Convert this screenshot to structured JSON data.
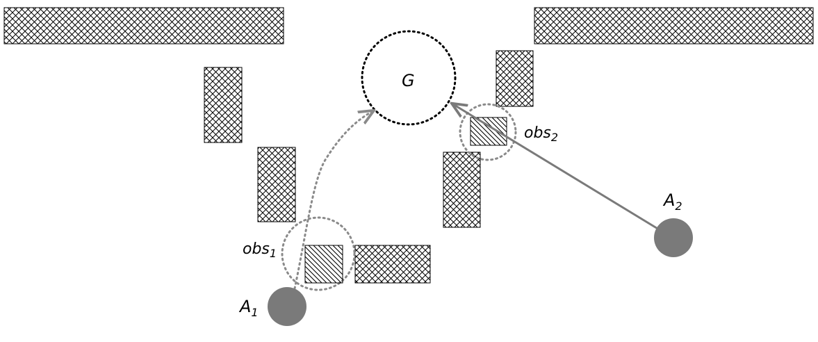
{
  "labels": {
    "goal": "G",
    "agent1": "A",
    "agent1_sub": "1",
    "agent2": "A",
    "agent2_sub": "2",
    "obs1": "obs",
    "obs1_sub": "1",
    "obs2": "obs",
    "obs2_sub": "2"
  },
  "colors": {
    "agent_fill": "#7a7a7a",
    "path_gray": "#8a8a8a",
    "outline": "#000000"
  }
}
